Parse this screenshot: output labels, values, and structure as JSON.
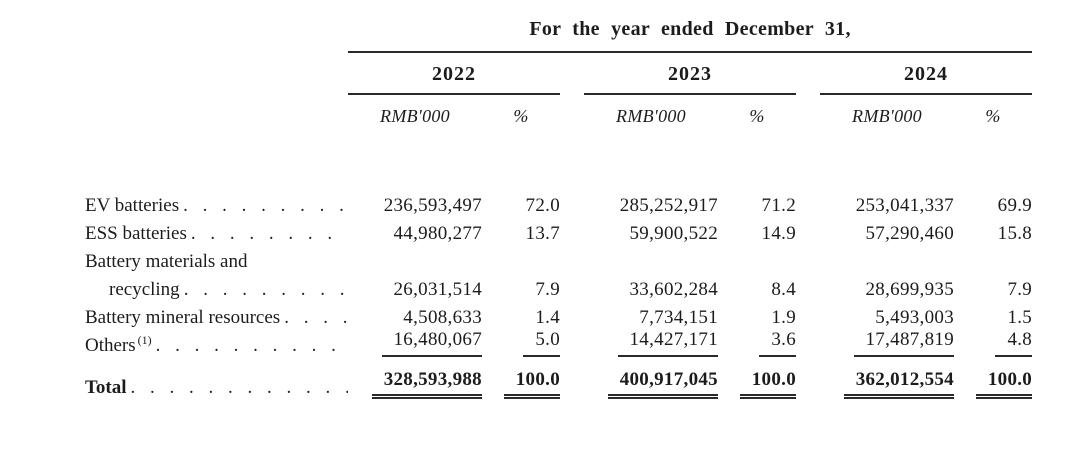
{
  "table": {
    "title": "For the year ended December 31,",
    "years": [
      "2022",
      "2023",
      "2024"
    ],
    "col_headers": {
      "amount": "RMB'000",
      "percent": "%"
    },
    "leader_dots": ". . . . . . . . . . . . . . . . . . . . . . . . . . . . . . . . . . . . . . . .",
    "rows": [
      {
        "label": "EV batteries",
        "values": [
          "236,593,497",
          "72.0",
          "285,252,917",
          "71.2",
          "253,041,337",
          "69.9"
        ]
      },
      {
        "label": "ESS batteries",
        "values": [
          "44,980,277",
          "13.7",
          "59,900,522",
          "14.9",
          "57,290,460",
          "15.8"
        ]
      },
      {
        "label": "Battery materials and",
        "values": [
          "",
          "",
          "",
          "",
          "",
          ""
        ]
      },
      {
        "label": "recycling",
        "values": [
          "26,031,514",
          "7.9",
          "33,602,284",
          "8.4",
          "28,699,935",
          "7.9"
        ]
      },
      {
        "label": "Battery mineral resources",
        "values": [
          "4,508,633",
          "1.4",
          "7,734,151",
          "1.9",
          "5,493,003",
          "1.5"
        ]
      },
      {
        "label": "Others",
        "footnote_ref": "(1)",
        "values": [
          "16,480,067",
          "5.0",
          "14,427,171",
          "3.6",
          "17,487,819",
          "4.8"
        ]
      }
    ],
    "total_row": {
      "label": "Total",
      "values": [
        "328,593,988",
        "100.0",
        "400,917,045",
        "100.0",
        "362,012,554",
        "100.0"
      ]
    }
  },
  "colors": {
    "background": "#ffffff",
    "text": "#1c1c1c",
    "rule": "#2a2a2a"
  }
}
